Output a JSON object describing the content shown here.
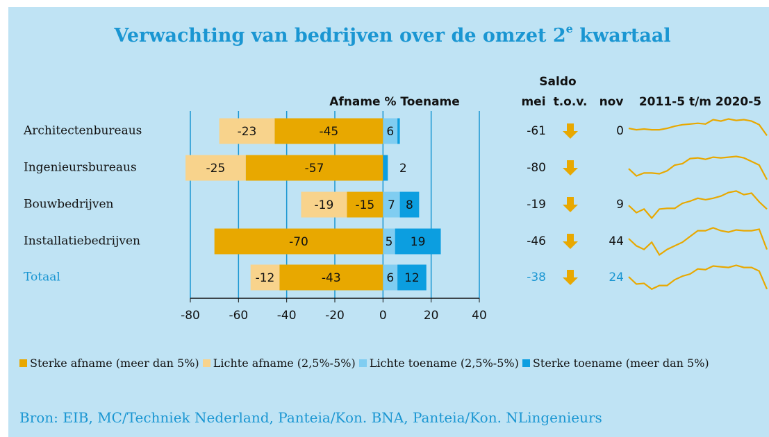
{
  "chart_data": {
    "type": "diverging-bar",
    "title": "Verwachting van bedrijven over de omzet 2",
    "title_sup": "e",
    "title_end": " kwartaal",
    "axis_label": "Afname % Toename",
    "categories": [
      "Architectenbureaus",
      "Ingenieursbureaus",
      "Bouwbedrijven",
      "Installatiebedrijven",
      "Totaal"
    ],
    "series": [
      {
        "name": "Sterke afname (meer dan 5%)",
        "color": "#e8a800",
        "values": [
          -45,
          -57,
          -15,
          -70,
          -43
        ]
      },
      {
        "name": "Lichte afname (2,5%-5%)",
        "color": "#f8d38c",
        "values": [
          -23,
          -25,
          -19,
          null,
          -12
        ]
      },
      {
        "name": "Lichte toename (2,5%-5%)",
        "color": "#80cdf1",
        "values": [
          6,
          null,
          7,
          5,
          6
        ]
      },
      {
        "name": "Sterke toename (meer dan 5%)",
        "color": "#0c9ee0",
        "values": [
          1,
          2,
          8,
          19,
          12
        ],
        "value_labels": [
          null,
          "2",
          "8",
          "19",
          "12"
        ]
      }
    ],
    "xlim": [
      -80,
      40
    ],
    "xticks": [
      -80,
      -60,
      -40,
      -20,
      0,
      20,
      40
    ],
    "grid": true,
    "saldo_header": "Saldo",
    "mei_header": "mei",
    "tov_header": "t.o.v.",
    "nov_header": "nov",
    "spark_header": "2011-5 t/m 2020-5",
    "saldo_mei": [
      -61,
      -80,
      -19,
      -46,
      -38
    ],
    "trend": [
      "down",
      "down",
      "down",
      "down",
      "down"
    ],
    "trend_color": "#e8a800",
    "saldo_nov": [
      0,
      null,
      9,
      44,
      24
    ],
    "spark_color": "#e8a800",
    "spark_ylim": [
      -60,
      40
    ],
    "sparklines": [
      [
        -10,
        -14,
        -12,
        -14,
        -14,
        -10,
        -4,
        0,
        2,
        4,
        2,
        14,
        10,
        16,
        12,
        14,
        10,
        0,
        -30
      ],
      [
        -20,
        -40,
        -32,
        -32,
        -34,
        -26,
        -10,
        -6,
        8,
        10,
        6,
        12,
        10,
        12,
        14,
        10,
        0,
        -10,
        -50
      ],
      [
        -20,
        -40,
        -30,
        -55,
        -30,
        -28,
        -28,
        -14,
        -8,
        0,
        -4,
        0,
        6,
        16,
        20,
        10,
        14,
        -10,
        -30
      ],
      [
        -10,
        -30,
        -40,
        -20,
        -55,
        -40,
        -30,
        -20,
        -4,
        12,
        12,
        20,
        12,
        8,
        14,
        12,
        12,
        16,
        -40
      ],
      [
        -16,
        -36,
        -34,
        -50,
        -40,
        -40,
        -24,
        -14,
        -8,
        6,
        4,
        14,
        12,
        10,
        16,
        10,
        10,
        0,
        -50
      ]
    ],
    "source": "Bron: EIB, MC/Techniek Nederland, Panteia/Kon. BNA, Panteia/Kon. NLingenieurs"
  }
}
